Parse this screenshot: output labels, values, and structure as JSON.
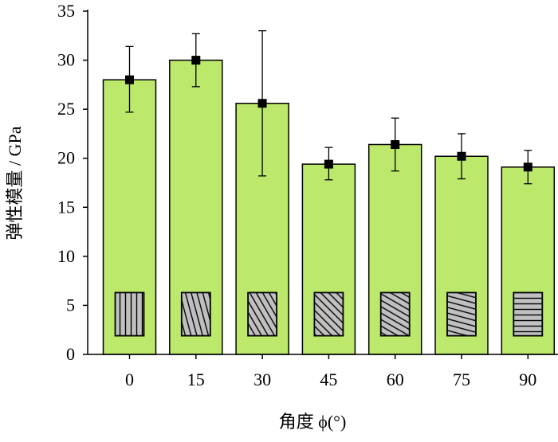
{
  "chart_data": {
    "type": "bar",
    "categories": [
      "0",
      "15",
      "30",
      "45",
      "60",
      "75",
      "90"
    ],
    "values": [
      28.0,
      30.0,
      25.6,
      19.4,
      21.4,
      20.2,
      19.1
    ],
    "error_upper": [
      31.4,
      32.7,
      33.0,
      21.1,
      24.1,
      22.5,
      20.8
    ],
    "error_lower": [
      24.7,
      27.3,
      18.2,
      17.8,
      18.7,
      17.9,
      17.4
    ],
    "ylabel": "弹性模量 / GPa",
    "xlabel": "角度 ϕ(°)",
    "ylim": [
      0,
      35
    ],
    "yticks": [
      "0",
      "5",
      "10",
      "15",
      "20",
      "25",
      "30",
      "35"
    ],
    "grid": false,
    "bar_color": "#bce86b",
    "inset_hatch_angles_deg": [
      0,
      15,
      30,
      45,
      60,
      75,
      90
    ],
    "inset_fill": "#c0c0c0"
  }
}
